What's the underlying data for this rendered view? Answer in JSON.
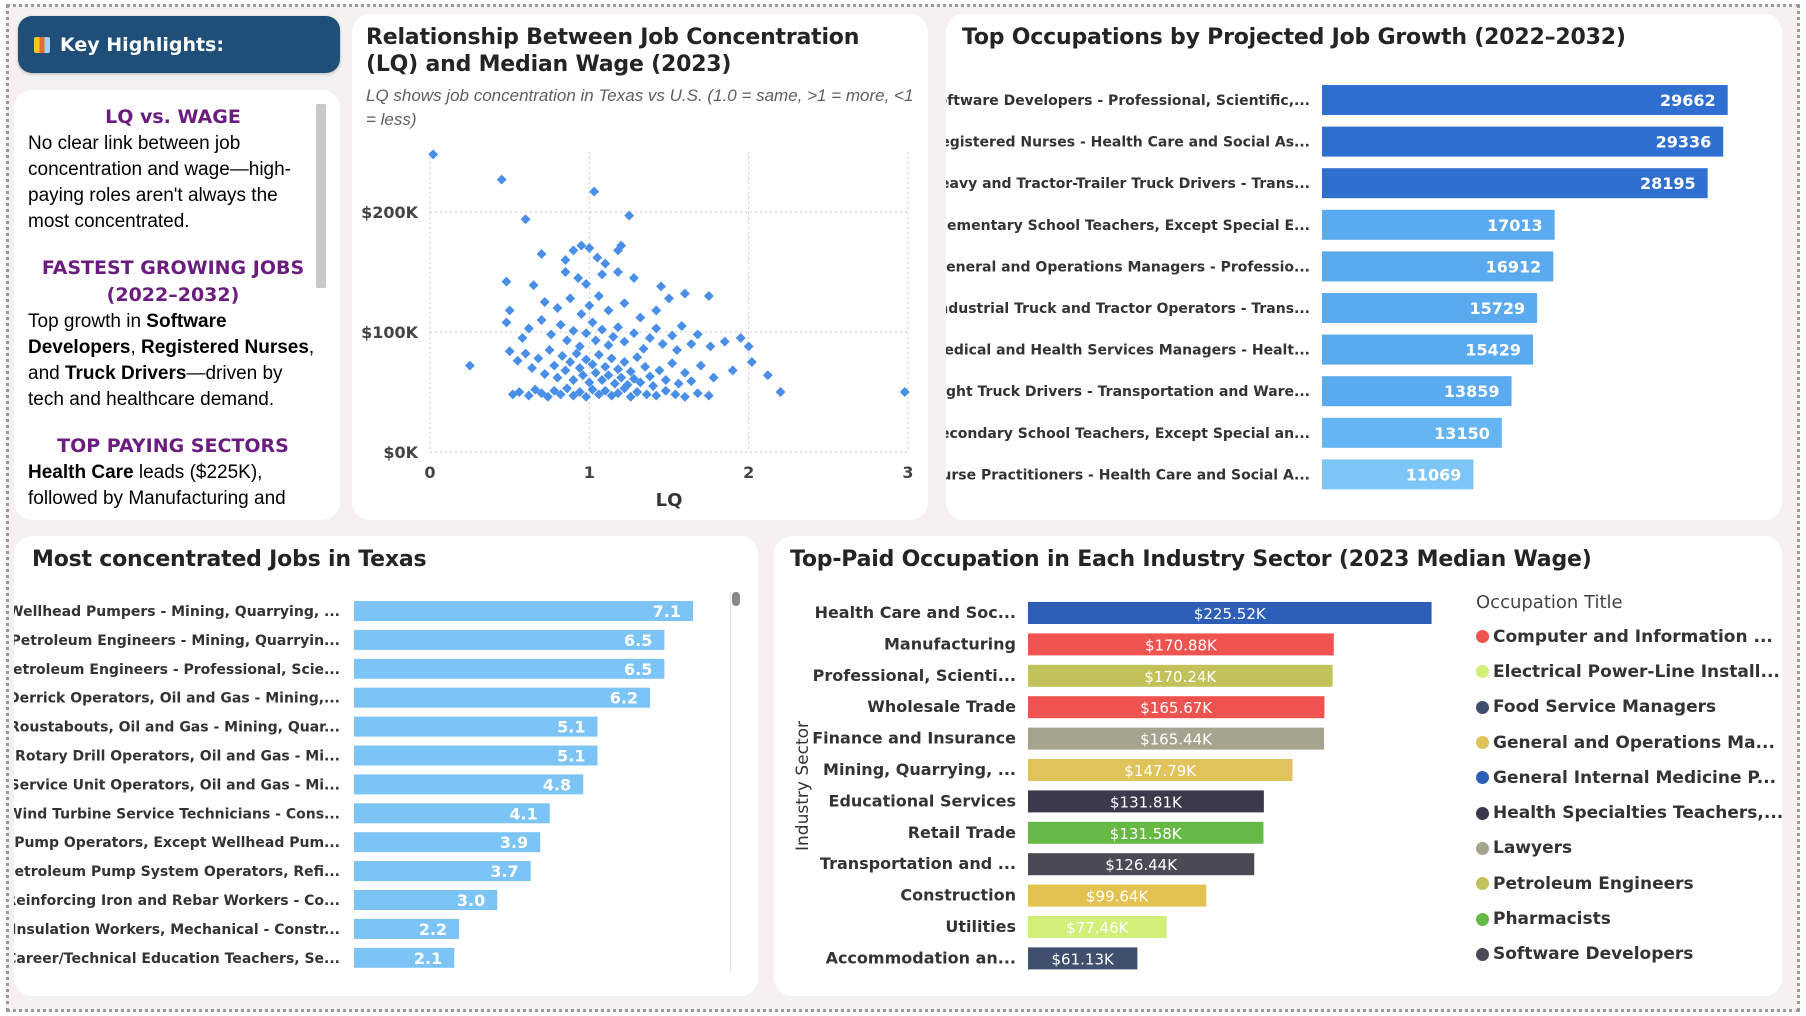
{
  "highlights": {
    "header": "Key Highlights:",
    "icon": "bar-chart-icon",
    "sections": [
      {
        "heading": "LQ vs. WAGE",
        "text": "No clear link between job concentration and wage—high-paying roles aren't always the most concentrated."
      },
      {
        "heading": "FASTEST GROWING JOBS (2022–2032)",
        "pre": "Top growth in ",
        "b1": "Software Developers",
        "mid1": ", ",
        "b2": "Registered Nurses",
        "mid2": ", and ",
        "b3": "Truck Drivers",
        "post": "—driven by tech and healthcare demand."
      },
      {
        "heading": "TOP PAYING SECTORS",
        "b1": "Health Care",
        "post": " leads ($225K), followed by Manufacturing and"
      }
    ]
  },
  "scatter_card": {
    "title": "Relationship Between Job Concentration (LQ) and Median Wage (2023)",
    "subtitle": "LQ shows job concentration in Texas vs U.S. (1.0 = same, >1 = more, <1 = less)"
  },
  "growth_card": {
    "title": "Top Occupations by Projected Job Growth (2022–2032)"
  },
  "lq_card": {
    "title": "Most concentrated Jobs in Texas"
  },
  "wage_card": {
    "title": "Top-Paid Occupation in Each Industry Sector (2023 Median Wage)",
    "legend_title": "Occupation Title"
  },
  "chart_data": [
    {
      "id": "scatter",
      "type": "scatter",
      "xlabel": "LQ",
      "ylabel": "",
      "xlim": [
        0,
        3
      ],
      "ylim": [
        0,
        250000
      ],
      "xticks": [
        "0",
        "1",
        "2",
        "3"
      ],
      "yticks": [
        "$0K",
        "$100K",
        "$200K"
      ],
      "ytick_values": [
        0,
        100000,
        200000
      ],
      "color": "#4a8fe7",
      "points": [
        [
          0.45,
          227000
        ],
        [
          1.03,
          217000
        ],
        [
          0.6,
          194000
        ],
        [
          1.25,
          197000
        ],
        [
          0.02,
          248000
        ],
        [
          0.7,
          165000
        ],
        [
          0.9,
          168000
        ],
        [
          0.95,
          172000
        ],
        [
          1.0,
          170000
        ],
        [
          1.18,
          168000
        ],
        [
          1.2,
          172000
        ],
        [
          0.85,
          160000
        ],
        [
          1.05,
          162000
        ],
        [
          1.1,
          157000
        ],
        [
          0.48,
          142000
        ],
        [
          0.65,
          139000
        ],
        [
          0.85,
          150000
        ],
        [
          0.93,
          145000
        ],
        [
          0.98,
          140000
        ],
        [
          1.08,
          148000
        ],
        [
          1.18,
          150000
        ],
        [
          1.28,
          145000
        ],
        [
          1.45,
          138000
        ],
        [
          1.6,
          132000
        ],
        [
          1.75,
          130000
        ],
        [
          0.5,
          118000
        ],
        [
          0.72,
          125000
        ],
        [
          0.8,
          120000
        ],
        [
          0.88,
          128000
        ],
        [
          0.95,
          115000
        ],
        [
          1.0,
          122000
        ],
        [
          1.06,
          130000
        ],
        [
          1.12,
          118000
        ],
        [
          1.22,
          124000
        ],
        [
          1.32,
          112000
        ],
        [
          1.42,
          118000
        ],
        [
          1.5,
          128000
        ],
        [
          0.48,
          108000
        ],
        [
          0.58,
          95000
        ],
        [
          0.62,
          103000
        ],
        [
          0.7,
          110000
        ],
        [
          0.76,
          98000
        ],
        [
          0.82,
          106000
        ],
        [
          0.86,
          93000
        ],
        [
          0.9,
          101000
        ],
        [
          0.94,
          88000
        ],
        [
          0.98,
          99000
        ],
        [
          1.02,
          108000
        ],
        [
          1.04,
          93000
        ],
        [
          1.08,
          102000
        ],
        [
          1.12,
          89000
        ],
        [
          1.15,
          96000
        ],
        [
          1.18,
          104000
        ],
        [
          1.22,
          92000
        ],
        [
          1.28,
          99000
        ],
        [
          1.34,
          86000
        ],
        [
          1.38,
          95000
        ],
        [
          1.42,
          103000
        ],
        [
          1.46,
          90000
        ],
        [
          1.52,
          97000
        ],
        [
          1.55,
          85000
        ],
        [
          1.58,
          105000
        ],
        [
          1.64,
          90000
        ],
        [
          1.68,
          98000
        ],
        [
          1.76,
          88000
        ],
        [
          1.85,
          92000
        ],
        [
          1.95,
          95000
        ],
        [
          2.0,
          88000
        ],
        [
          0.25,
          72000
        ],
        [
          0.5,
          84000
        ],
        [
          0.55,
          76000
        ],
        [
          0.6,
          82000
        ],
        [
          0.64,
          70000
        ],
        [
          0.68,
          78000
        ],
        [
          0.72,
          65000
        ],
        [
          0.75,
          85000
        ],
        [
          0.78,
          72000
        ],
        [
          0.8,
          62000
        ],
        [
          0.83,
          80000
        ],
        [
          0.85,
          68000
        ],
        [
          0.88,
          75000
        ],
        [
          0.9,
          60000
        ],
        [
          0.92,
          82000
        ],
        [
          0.94,
          70000
        ],
        [
          0.96,
          64000
        ],
        [
          0.98,
          77000
        ],
        [
          1.0,
          58000
        ],
        [
          1.02,
          73000
        ],
        [
          1.04,
          66000
        ],
        [
          1.06,
          81000
        ],
        [
          1.08,
          60000
        ],
        [
          1.1,
          71000
        ],
        [
          1.12,
          64000
        ],
        [
          1.14,
          78000
        ],
        [
          1.16,
          57000
        ],
        [
          1.18,
          69000
        ],
        [
          1.2,
          62000
        ],
        [
          1.22,
          75000
        ],
        [
          1.24,
          56000
        ],
        [
          1.26,
          67000
        ],
        [
          1.28,
          61000
        ],
        [
          1.3,
          79000
        ],
        [
          1.32,
          58000
        ],
        [
          1.35,
          71000
        ],
        [
          1.38,
          63000
        ],
        [
          1.4,
          55000
        ],
        [
          1.44,
          68000
        ],
        [
          1.48,
          60000
        ],
        [
          1.52,
          74000
        ],
        [
          1.56,
          57000
        ],
        [
          1.6,
          66000
        ],
        [
          1.64,
          59000
        ],
        [
          1.7,
          72000
        ],
        [
          1.78,
          62000
        ],
        [
          1.9,
          68000
        ],
        [
          2.02,
          75000
        ],
        [
          2.12,
          64000
        ],
        [
          0.52,
          48000
        ],
        [
          0.56,
          50000
        ],
        [
          0.62,
          47000
        ],
        [
          0.66,
          52000
        ],
        [
          0.7,
          49000
        ],
        [
          0.74,
          46000
        ],
        [
          0.78,
          51000
        ],
        [
          0.82,
          48000
        ],
        [
          0.86,
          53000
        ],
        [
          0.9,
          47000
        ],
        [
          0.94,
          50000
        ],
        [
          0.98,
          46000
        ],
        [
          1.02,
          52000
        ],
        [
          1.06,
          48000
        ],
        [
          1.1,
          51000
        ],
        [
          1.14,
          47000
        ],
        [
          1.18,
          49000
        ],
        [
          1.22,
          53000
        ],
        [
          1.26,
          46000
        ],
        [
          1.3,
          50000
        ],
        [
          1.36,
          48000
        ],
        [
          1.42,
          47000
        ],
        [
          1.48,
          51000
        ],
        [
          1.54,
          48000
        ],
        [
          1.6,
          46000
        ],
        [
          1.68,
          49000
        ],
        [
          1.75,
          47000
        ],
        [
          2.2,
          50000
        ],
        [
          2.98,
          50000
        ]
      ]
    },
    {
      "id": "growth",
      "type": "bar",
      "orientation": "horizontal",
      "categories": [
        "Software Developers - Professional, Scientific,...",
        "Registered Nurses - Health Care and Social As...",
        "Heavy and Tractor-Trailer Truck Drivers - Trans...",
        "Elementary School Teachers, Except Special E...",
        "General and Operations Managers - Professio...",
        "Industrial Truck and Tractor Operators - Trans...",
        "Medical and Health Services Managers - Healt...",
        "Light Truck Drivers - Transportation and Ware...",
        "Secondary School Teachers, Except Special an...",
        "Nurse Practitioners - Health Care and Social A..."
      ],
      "values": [
        29662,
        29336,
        28195,
        17013,
        16912,
        15729,
        15429,
        13859,
        13150,
        11069
      ],
      "labels": [
        "29662",
        "29336",
        "28195",
        "17013",
        "16912",
        "15729",
        "15429",
        "13859",
        "13150",
        "11069"
      ],
      "colors": [
        "#2e6fd0",
        "#2e6fd0",
        "#2e6fd0",
        "#5aaaf0",
        "#5aaaf0",
        "#5aaaf0",
        "#5aaaf0",
        "#5aaaf0",
        "#66b5f3",
        "#7cc5f6"
      ],
      "xlim": [
        0,
        31000
      ]
    },
    {
      "id": "lq",
      "type": "bar",
      "orientation": "horizontal",
      "categories": [
        "Wellhead Pumpers - Mining, Quarrying, ...",
        "Petroleum Engineers - Mining, Quarryin...",
        "Petroleum Engineers - Professional, Scie...",
        "Derrick Operators, Oil and Gas - Mining,...",
        "Roustabouts, Oil and Gas - Mining, Quar...",
        "Rotary Drill Operators, Oil and Gas - Mi...",
        "Service Unit Operators, Oil and Gas - Mi...",
        "Wind Turbine Service Technicians - Cons...",
        "Pump Operators, Except Wellhead Pum...",
        "Petroleum Pump System Operators, Refi...",
        "Reinforcing Iron and Rebar Workers - Co...",
        "Insulation Workers, Mechanical - Constr...",
        "Career/Technical Education Teachers, Se..."
      ],
      "values": [
        7.1,
        6.5,
        6.5,
        6.2,
        5.1,
        5.1,
        4.8,
        4.1,
        3.9,
        3.7,
        3.0,
        2.2,
        2.1
      ],
      "labels": [
        "7.1",
        "6.5",
        "6.5",
        "6.2",
        "5.1",
        "5.1",
        "4.8",
        "4.1",
        "3.9",
        "3.7",
        "3.0",
        "2.2",
        "2.1"
      ],
      "color": "#7cc4f5",
      "xlim": [
        0,
        8
      ]
    },
    {
      "id": "wage",
      "type": "bar",
      "orientation": "horizontal",
      "ylabel": "Industry Sector",
      "categories": [
        "Health Care and Soc...",
        "Manufacturing",
        "Professional, Scienti...",
        "Wholesale Trade",
        "Finance and Insurance",
        "Mining, Quarrying, ...",
        "Educational Services",
        "Retail Trade",
        "Transportation and ...",
        "Construction",
        "Utilities",
        "Accommodation an..."
      ],
      "values": [
        225.52,
        170.88,
        170.24,
        165.67,
        165.44,
        147.79,
        131.81,
        131.58,
        126.44,
        99.64,
        77.46,
        61.13
      ],
      "labels": [
        "$225.52K",
        "$170.88K",
        "$170.24K",
        "$165.67K",
        "$165.44K",
        "$147.79K",
        "$131.81K",
        "$131.58K",
        "$126.44K",
        "$99.64K",
        "$77.46K",
        "$61.13K"
      ],
      "colors": [
        "#2e5fb8",
        "#ef5350",
        "#c2c15a",
        "#ef5350",
        "#a6a38e",
        "#e0c35a",
        "#3a3a4c",
        "#67b945",
        "#4a4a56",
        "#e4c251",
        "#d2ef7a",
        "#3f4f6e"
      ],
      "xlim": [
        0,
        228
      ],
      "legend": [
        {
          "label": "Computer and Information ...",
          "color": "#ef5350"
        },
        {
          "label": "Electrical Power-Line Install...",
          "color": "#d2ef7a"
        },
        {
          "label": "Food Service Managers",
          "color": "#3f4f6e"
        },
        {
          "label": "General and Operations Ma...",
          "color": "#e0c35a"
        },
        {
          "label": "General Internal Medicine P...",
          "color": "#2e5fb8"
        },
        {
          "label": "Health Specialties Teachers,...",
          "color": "#3a3a4c"
        },
        {
          "label": "Lawyers",
          "color": "#a6a38e"
        },
        {
          "label": "Petroleum Engineers",
          "color": "#c2c15a"
        },
        {
          "label": "Pharmacists",
          "color": "#67b945"
        },
        {
          "label": "Software Developers",
          "color": "#4a4a56"
        }
      ]
    }
  ]
}
